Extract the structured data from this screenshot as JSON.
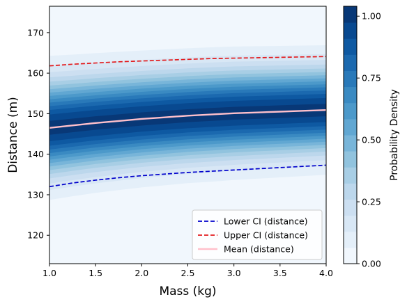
{
  "chart_data": {
    "type": "heatmap",
    "xlabel": "Mass (kg)",
    "ylabel": "Distance (m)",
    "xlim": [
      1.0,
      4.0
    ],
    "ylim": [
      113,
      176.5
    ],
    "xticks": [
      "1.0",
      "1.5",
      "2.0",
      "2.5",
      "3.0",
      "3.5",
      "4.0"
    ],
    "yticks": [
      "120",
      "130",
      "140",
      "150",
      "160",
      "170"
    ],
    "colorbar": {
      "label": "Probability Density",
      "range": [
        0.0,
        1.04
      ],
      "ticks": [
        "0.00",
        "0.25",
        "0.50",
        "0.75",
        "1.00"
      ],
      "levels": 16
    },
    "x": [
      1.0,
      1.25,
      1.5,
      1.75,
      2.0,
      2.25,
      2.5,
      2.75,
      3.0,
      3.25,
      3.5,
      3.75,
      4.0
    ],
    "series": [
      {
        "name": "Lower CI (distance)",
        "style": "dashed",
        "color": "#0000cc",
        "values": [
          132.0,
          132.9,
          133.6,
          134.2,
          134.7,
          135.1,
          135.5,
          135.8,
          136.1,
          136.4,
          136.7,
          137.0,
          137.3
        ]
      },
      {
        "name": "Upper CI (distance)",
        "style": "dashed",
        "color": "#e31a1c",
        "values": [
          161.8,
          162.2,
          162.5,
          162.8,
          163.0,
          163.2,
          163.4,
          163.6,
          163.7,
          163.8,
          163.9,
          164.0,
          164.1
        ]
      },
      {
        "name": "Mean (distance)",
        "style": "solid",
        "color": "#ffc0cb",
        "values": [
          146.5,
          147.1,
          147.7,
          148.2,
          148.7,
          149.1,
          149.5,
          149.8,
          150.1,
          150.3,
          150.5,
          150.7,
          150.9
        ]
      }
    ],
    "legend_position": "lower-right",
    "grid": false
  }
}
